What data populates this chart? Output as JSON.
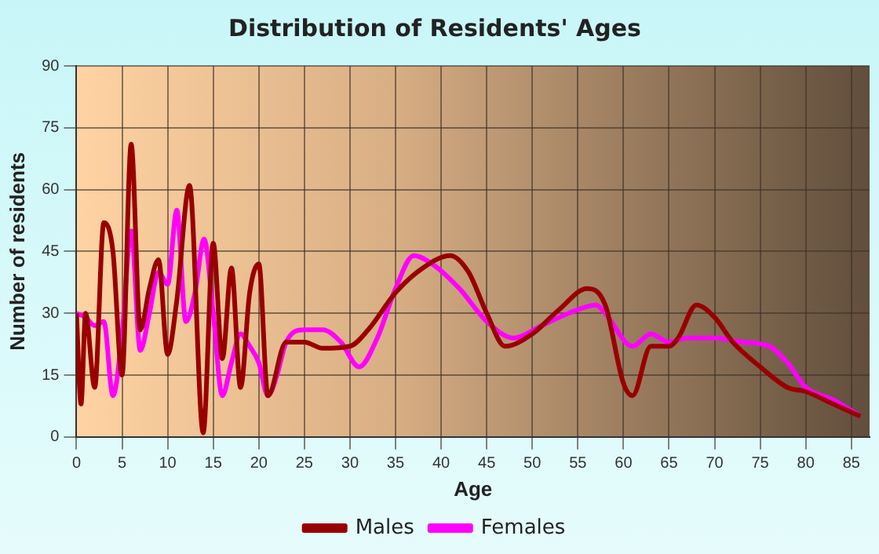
{
  "chart_data": {
    "type": "line",
    "title": "Distribution of Residents' Ages",
    "xlabel": "Age",
    "ylabel": "Number of residents",
    "xlim": [
      0,
      87
    ],
    "xticks": [
      0,
      5,
      10,
      15,
      20,
      25,
      30,
      35,
      40,
      45,
      50,
      55,
      60,
      65,
      70,
      75,
      80,
      85
    ],
    "ylim": [
      0,
      90
    ],
    "yticks": [
      0,
      15,
      30,
      45,
      60,
      75,
      90
    ],
    "grid": true,
    "legend": "bottom",
    "marker": "none",
    "line_style": "solid",
    "series": [
      {
        "name": "Males",
        "color": "#990000",
        "x": [
          0,
          0.5,
          1,
          2,
          3,
          4,
          5,
          6,
          7,
          8,
          9,
          10,
          11,
          12.4,
          13.9,
          15,
          16,
          17,
          18,
          19,
          20,
          21,
          23,
          25,
          27,
          30,
          32,
          35,
          38,
          41,
          43,
          45,
          47,
          50,
          53,
          56,
          58,
          60,
          61,
          63,
          65,
          66,
          68,
          70,
          72,
          75,
          78,
          80,
          83,
          86
        ],
        "values": [
          30,
          8,
          30,
          12,
          52,
          45,
          15,
          71,
          26,
          36,
          43,
          20,
          33,
          61,
          1,
          47,
          19,
          41,
          12,
          35,
          42,
          10,
          23,
          23,
          21.5,
          22,
          26,
          35,
          41,
          44,
          40,
          30,
          22,
          25,
          31,
          36,
          32,
          13,
          10,
          22,
          22,
          24,
          32,
          29,
          23,
          17,
          12,
          11,
          8,
          5
        ]
      },
      {
        "name": "Females",
        "color": "#ff00ff",
        "x": [
          0,
          1,
          2,
          3,
          4,
          5,
          6,
          7,
          8,
          9,
          10,
          11,
          12,
          13,
          14,
          15,
          16,
          17,
          18,
          19,
          20,
          21,
          22,
          23,
          25,
          27,
          29,
          31,
          33,
          35,
          37,
          39,
          42,
          45,
          48,
          51,
          54,
          57,
          58,
          61,
          63,
          65,
          67,
          70,
          73,
          76,
          78,
          80,
          83,
          86
        ],
        "values": [
          30,
          29,
          27,
          28,
          10,
          25,
          50,
          21,
          30,
          40,
          37,
          55,
          28,
          35,
          48,
          30,
          10,
          18,
          25,
          22,
          18,
          10,
          15,
          23,
          26,
          26,
          23,
          17,
          24,
          36,
          44,
          42,
          36,
          28,
          24,
          27,
          30,
          32,
          30,
          22,
          25,
          23,
          24,
          24,
          23,
          22,
          18,
          12,
          9,
          5
        ]
      }
    ]
  }
}
